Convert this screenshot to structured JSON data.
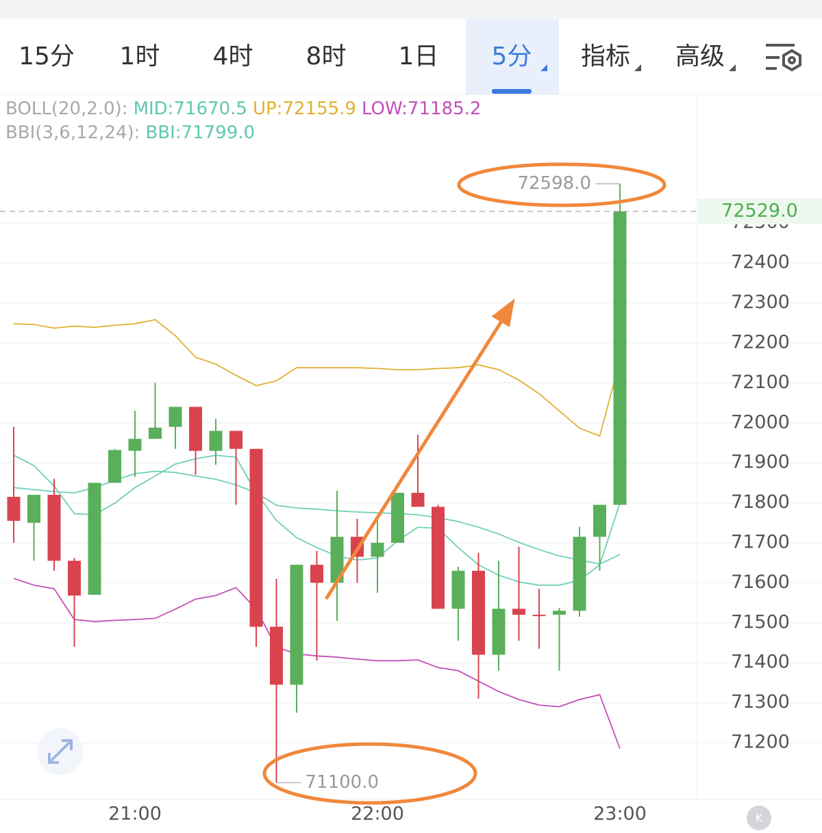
{
  "tabs": [
    "15分",
    "1时",
    "4时",
    "8时",
    "1日",
    "5分",
    "指标",
    "高级"
  ],
  "active_tab": 5,
  "chart_data": {
    "type": "candlestick",
    "indicators": [
      [
        {
          "text": "BOLL(20,2.0):",
          "color": "#a9a9a9"
        },
        {
          "text": "MID:71670.5",
          "color": "#5ec8b0"
        },
        {
          "text": "UP:72155.9",
          "color": "#e0b030"
        },
        {
          "text": "LOW:71185.2",
          "color": "#c24fb8"
        }
      ],
      [
        {
          "text": "BBI(3,6,12,24):",
          "color": "#a9a9a9"
        },
        {
          "text": "BBI:71799.0",
          "color": "#5ec8b0"
        }
      ]
    ],
    "categories": [
      null,
      null,
      null,
      null,
      null,
      null,
      "21:00",
      null,
      null,
      null,
      null,
      null,
      null,
      null,
      null,
      null,
      null,
      null,
      "22:00",
      null,
      null,
      null,
      null,
      null,
      null,
      null,
      null,
      null,
      null,
      null,
      "23:00"
    ],
    "open": [
      71815,
      71750,
      71820,
      71655,
      71570,
      71850,
      71930,
      71960,
      71990,
      72040,
      71930,
      71980,
      71935,
      71490,
      71345,
      71645,
      71600,
      71715,
      71665,
      71700,
      71825,
      71790,
      71535,
      71630,
      71420,
      71535,
      71520,
      71520,
      71530,
      71715,
      71795
    ],
    "high": [
      71990,
      71820,
      71860,
      71662,
      71850,
      71935,
      72030,
      72100,
      72040,
      72040,
      72010,
      71980,
      71935,
      71610,
      71645,
      71680,
      71830,
      71760,
      71755,
      71825,
      71970,
      71795,
      71640,
      71675,
      71655,
      71690,
      71585,
      71537,
      71740,
      71795,
      72598
    ],
    "low": [
      71700,
      71655,
      71630,
      71440,
      71570,
      71850,
      71865,
      71960,
      71935,
      71870,
      71895,
      71795,
      71440,
      71100,
      71275,
      71405,
      71505,
      71600,
      71575,
      71700,
      71790,
      71535,
      71455,
      71310,
      71380,
      71455,
      71435,
      71380,
      71515,
      71630,
      71795
    ],
    "close": [
      71755,
      71820,
      71655,
      71568,
      71850,
      71932,
      71960,
      71988,
      72040,
      71930,
      71980,
      71935,
      71490,
      71345,
      71645,
      71600,
      71715,
      71665,
      71700,
      71825,
      71790,
      71535,
      71630,
      71420,
      71535,
      71520,
      71520,
      71530,
      71715,
      71795,
      72529
    ],
    "up_color": "#5aaf5a",
    "down_color": "#d9434e",
    "lines": [
      {
        "color": "#e0b030",
        "values": [
          72248,
          72246,
          72237,
          72242,
          72239,
          72244,
          72248,
          72258,
          72218,
          72164,
          72147,
          72119,
          72093,
          72105,
          72138,
          72138,
          72138,
          72138,
          72136,
          72133,
          72133,
          72136,
          72138,
          72145,
          72133,
          72107,
          72073,
          72030,
          71987,
          71967,
          72155.9
        ]
      },
      {
        "color": "#6fcfb8",
        "values": [
          71838,
          71833,
          71828,
          71825,
          71838,
          71856,
          71873,
          71879,
          71876,
          71867,
          71859,
          71845,
          71825,
          71794,
          71787,
          71784,
          71780,
          71777,
          71775,
          71773,
          71770,
          71763,
          71753,
          71739,
          71722,
          71701,
          71683,
          71667,
          71657,
          71647,
          71670.5
        ]
      },
      {
        "color": "#6fcfb8",
        "values": [
          71919,
          71893,
          71842,
          71773,
          71770,
          71799,
          71838,
          71867,
          71897,
          71910,
          71919,
          71914,
          71825,
          71756,
          71713,
          71688,
          71667,
          71657,
          71662,
          71705,
          71739,
          71736,
          71688,
          71645,
          71619,
          71602,
          71594,
          71594,
          71606,
          71645,
          71799
        ]
      },
      {
        "color": "#c24fb8",
        "values": [
          71611,
          71594,
          71585,
          71508,
          71503,
          71506,
          71508,
          71511,
          71534,
          71559,
          71568,
          71588,
          71534,
          71439,
          71422,
          71417,
          71414,
          71409,
          71405,
          71405,
          71407,
          71388,
          71380,
          71354,
          71328,
          71308,
          71294,
          71290,
          71308,
          71320,
          71185.2
        ]
      }
    ],
    "ylim": [
      71058,
      72818
    ],
    "yticks": [
      71200,
      71300,
      71400,
      71500,
      71600,
      71700,
      71800,
      71900,
      72000,
      72100,
      72200,
      72300,
      72400,
      72500
    ],
    "grid": true,
    "current_price": {
      "value": 72529,
      "label": "72529.0"
    },
    "max_label": {
      "value": 72598,
      "label": "72598.0"
    },
    "min_label": {
      "value": 71100,
      "label": "71100.0"
    }
  }
}
